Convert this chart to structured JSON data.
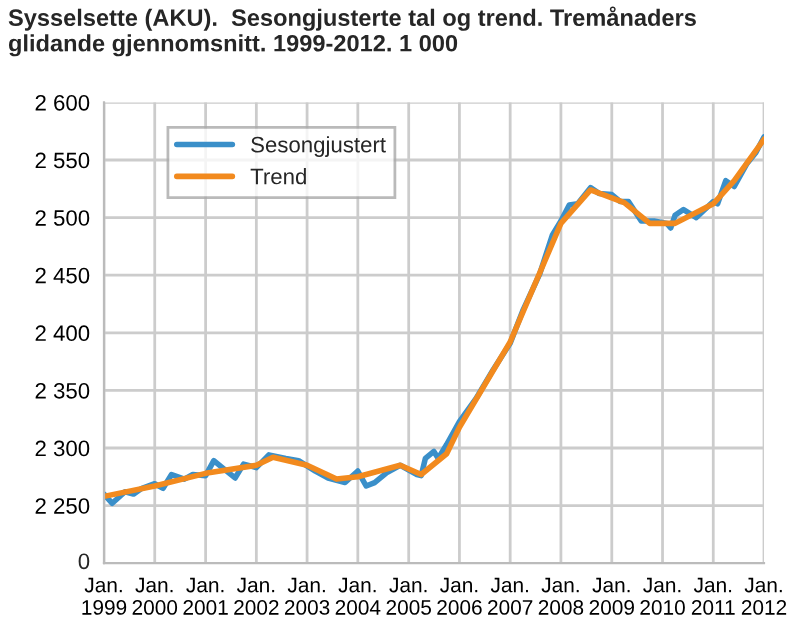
{
  "chart_data": {
    "type": "line",
    "title": "Sysselsette (AKU).  Sesongjusterte tal og trend. Tremånaders glidande gjennomsnitt. 1999-2012. 1 000",
    "series": [
      {
        "name": "Sesongjustert",
        "color": "#3a8fc9",
        "x": [
          "1999-01",
          "1999-03",
          "1999-06",
          "1999-08",
          "1999-10",
          "2000-01",
          "2000-03",
          "2000-05",
          "2000-08",
          "2000-10",
          "2001-01",
          "2001-03",
          "2001-05",
          "2001-08",
          "2001-10",
          "2002-01",
          "2002-04",
          "2002-08",
          "2002-11",
          "2003-03",
          "2003-06",
          "2003-10",
          "2004-01",
          "2004-03",
          "2004-05",
          "2004-08",
          "2004-11",
          "2005-03",
          "2005-04",
          "2005-05",
          "2005-07",
          "2005-08",
          "2005-10",
          "2006-01",
          "2006-05",
          "2006-09",
          "2007-01",
          "2007-04",
          "2007-08",
          "2007-11",
          "2008-01",
          "2008-03",
          "2008-05",
          "2008-08",
          "2008-10",
          "2009-01",
          "2009-03",
          "2009-05",
          "2009-08",
          "2009-11",
          "2010-02",
          "2010-03",
          "2010-04",
          "2010-06",
          "2010-09",
          "2011-01",
          "2011-02",
          "2011-04",
          "2011-06",
          "2011-09",
          "2011-11",
          "2012-01"
        ],
        "values": [
          2260,
          2252,
          2262,
          2260,
          2265,
          2269,
          2265,
          2277,
          2273,
          2277,
          2276,
          2289,
          2283,
          2274,
          2286,
          2283,
          2294,
          2291,
          2289,
          2280,
          2274,
          2270,
          2280,
          2267,
          2270,
          2279,
          2285,
          2277,
          2276,
          2291,
          2297,
          2291,
          2303,
          2323,
          2343,
          2368,
          2391,
          2419,
          2451,
          2485,
          2497,
          2511,
          2512,
          2526,
          2521,
          2520,
          2514,
          2514,
          2497,
          2497,
          2495,
          2491,
          2502,
          2507,
          2500,
          2514,
          2512,
          2532,
          2527,
          2547,
          2556,
          2570
        ]
      },
      {
        "name": "Trend",
        "color": "#f28a1e",
        "x": [
          "1999-01",
          "2000-01",
          "2001-01",
          "2002-01",
          "2002-05",
          "2003-01",
          "2003-08",
          "2004-01",
          "2004-11",
          "2005-04",
          "2005-10",
          "2006-01",
          "2007-01",
          "2008-01",
          "2008-08",
          "2009-04",
          "2009-10",
          "2010-04",
          "2011-01",
          "2011-06",
          "2012-01"
        ],
        "values": [
          2258,
          2267,
          2278,
          2285,
          2292,
          2285,
          2273,
          2275,
          2285,
          2277,
          2295,
          2318,
          2392,
          2495,
          2524,
          2513,
          2495,
          2495,
          2512,
          2532,
          2568
        ]
      }
    ],
    "xlim": [
      "1999-01",
      "2012-01"
    ],
    "xticks": [
      {
        "value": "1999-01",
        "label": "Jan.\n1999"
      },
      {
        "value": "2000-01",
        "label": "Jan.\n2000"
      },
      {
        "value": "2001-01",
        "label": "Jan.\n2001"
      },
      {
        "value": "2002-01",
        "label": "Jan.\n2002"
      },
      {
        "value": "2003-01",
        "label": "Jan.\n2003"
      },
      {
        "value": "2004-01",
        "label": "Jan.\n2004"
      },
      {
        "value": "2005-01",
        "label": "Jan.\n2005"
      },
      {
        "value": "2006-01",
        "label": "Jan.\n2006"
      },
      {
        "value": "2007-01",
        "label": "Jan.\n2007"
      },
      {
        "value": "2008-01",
        "label": "Jan.\n2008"
      },
      {
        "value": "2009-01",
        "label": "Jan.\n2009"
      },
      {
        "value": "2010-01",
        "label": "Jan.\n2010"
      },
      {
        "value": "2011-01",
        "label": "Jan.\n2011"
      },
      {
        "value": "2012-01",
        "label": "Jan.\n2012"
      }
    ],
    "ylim": [
      2200,
      2600
    ],
    "annotations": [
      "0"
    ],
    "yticks": [
      {
        "value": 2250,
        "label": "2 250"
      },
      {
        "value": 2300,
        "label": "2 300"
      },
      {
        "value": 2350,
        "label": "2 350"
      },
      {
        "value": 2400,
        "label": "2 400"
      },
      {
        "value": 2450,
        "label": "2 450"
      },
      {
        "value": 2500,
        "label": "2 500"
      },
      {
        "value": 2550,
        "label": "2 550"
      },
      {
        "value": 2600,
        "label": "2 600"
      }
    ],
    "grid": true,
    "legend": "top left",
    "line_style": "solid",
    "marker": "none"
  }
}
